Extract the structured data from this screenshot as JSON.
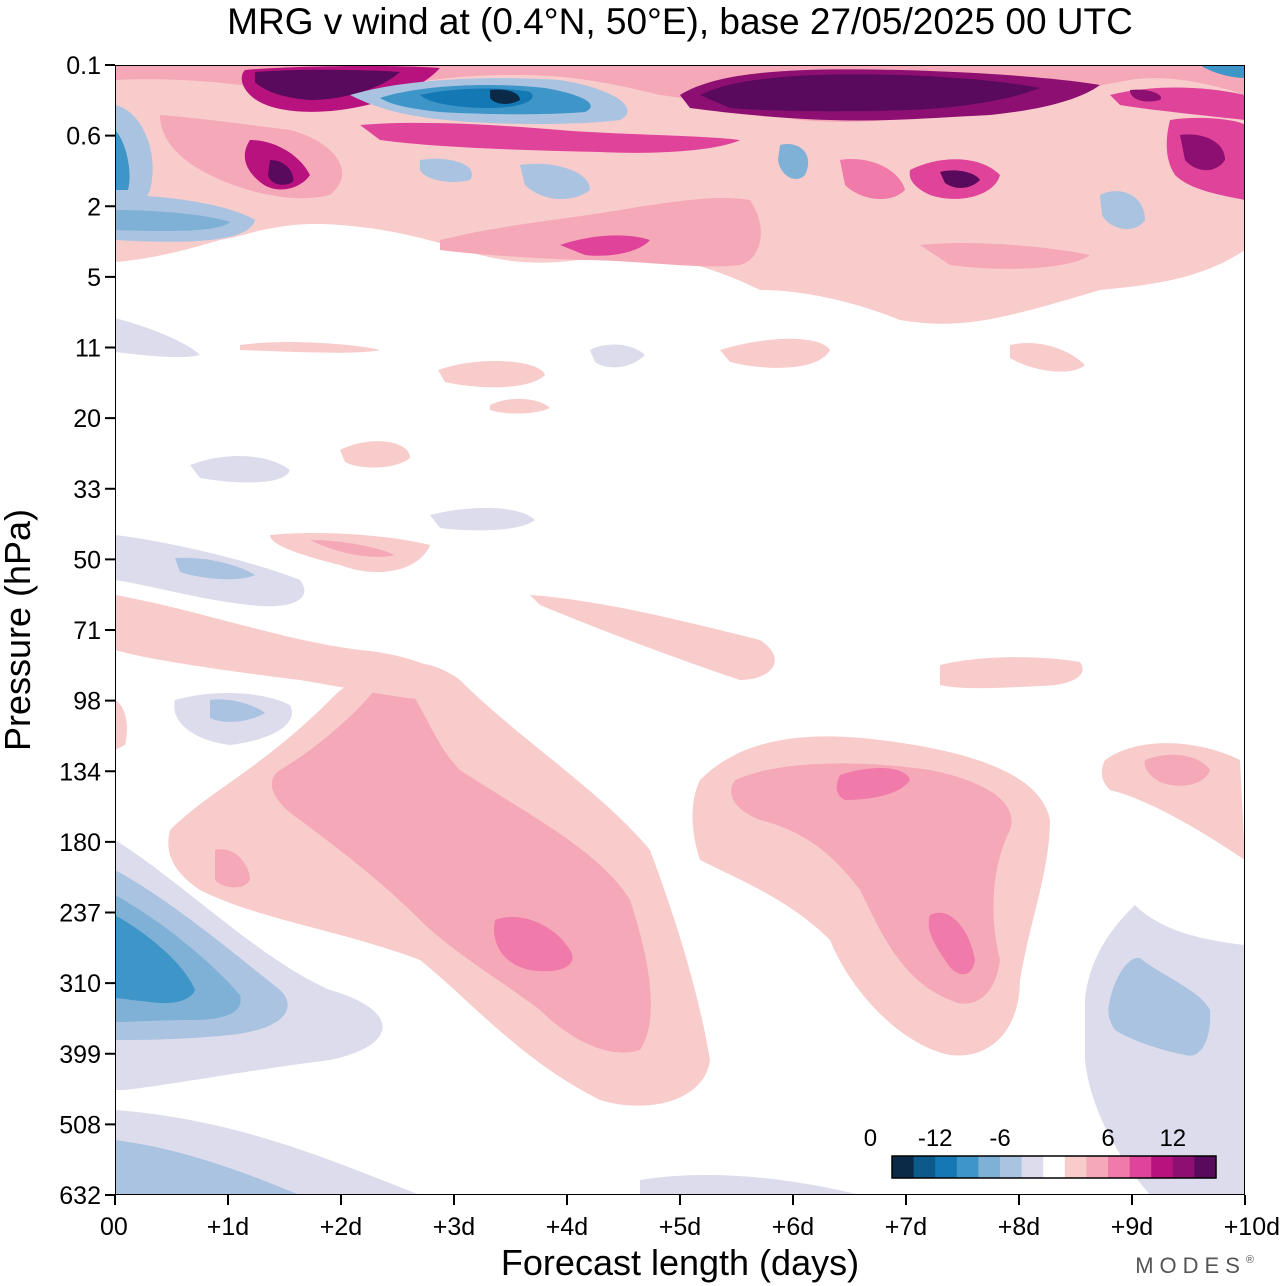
{
  "chart_data": {
    "type": "heatmap",
    "title": "MRG v wind at (0.4°N, 50°E),  base 27/05/2025  00 UTC",
    "xlabel": "Forecast length (days)",
    "ylabel": "Pressure (hPa)",
    "x_ticks": [
      "00",
      "+1d",
      "+2d",
      "+3d",
      "+4d",
      "+5d",
      "+6d",
      "+7d",
      "+8d",
      "+9d",
      "+10d"
    ],
    "y_ticks": [
      "0.1",
      "0.6",
      "2",
      "5",
      "11",
      "20",
      "33",
      "50",
      "71",
      "98",
      "134",
      "180",
      "237",
      "310",
      "399",
      "508",
      "632"
    ],
    "xlim": [
      0,
      10
    ],
    "y_axis": "pressure levels (hPa), decreasing upward",
    "colorbar": {
      "ticks": [
        "-12",
        "-6",
        "0",
        "6",
        "12"
      ],
      "levels": [
        -16,
        -14,
        -12,
        -10,
        -8,
        -6,
        -4,
        -2,
        2,
        4,
        6,
        8,
        10,
        12,
        14,
        16
      ],
      "colors": [
        "#0a2a48",
        "#0b5a8a",
        "#1478b4",
        "#3d95c8",
        "#7fb1d6",
        "#a9c3e1",
        "#dcdcec",
        "#ffffff",
        "#f9cccc",
        "#f5a9b8",
        "#f07aaa",
        "#e0449a",
        "#b8127e",
        "#8e0f72",
        "#5a0a5c"
      ]
    },
    "features": [
      {
        "x": [
          0.1,
          0.6
        ],
        "p": [
          "250",
          "340"
        ],
        "v_min": -10,
        "region": "negative, near-surface lower left"
      },
      {
        "x": [
          3.0,
          4.8
        ],
        "p": [
          "190",
          "420"
        ],
        "v_max": 10,
        "region": "positive"
      },
      {
        "x": [
          5.3,
          7.8
        ],
        "p": [
          "120",
          "380"
        ],
        "v_max": 10,
        "region": "positive"
      },
      {
        "x": [
          8.9,
          9.8
        ],
        "p": [
          "260",
          "440"
        ],
        "v_min": -6,
        "region": "negative"
      },
      {
        "x": [
          1.2,
          2.8
        ],
        "p": [
          "0.1",
          "0.3"
        ],
        "v_max": 16,
        "region": "strong positive, upper levels"
      },
      {
        "x": [
          2.7,
          4.5
        ],
        "p": [
          "0.1",
          "0.5"
        ],
        "v_min": -14,
        "region": "strong negative, upper levels"
      },
      {
        "x": [
          5.0,
          8.5
        ],
        "p": [
          "0.1",
          "0.4"
        ],
        "v_max": 16,
        "region": "strong positive, upper levels"
      }
    ]
  },
  "brand": "MODES",
  "brand_mark": "®"
}
